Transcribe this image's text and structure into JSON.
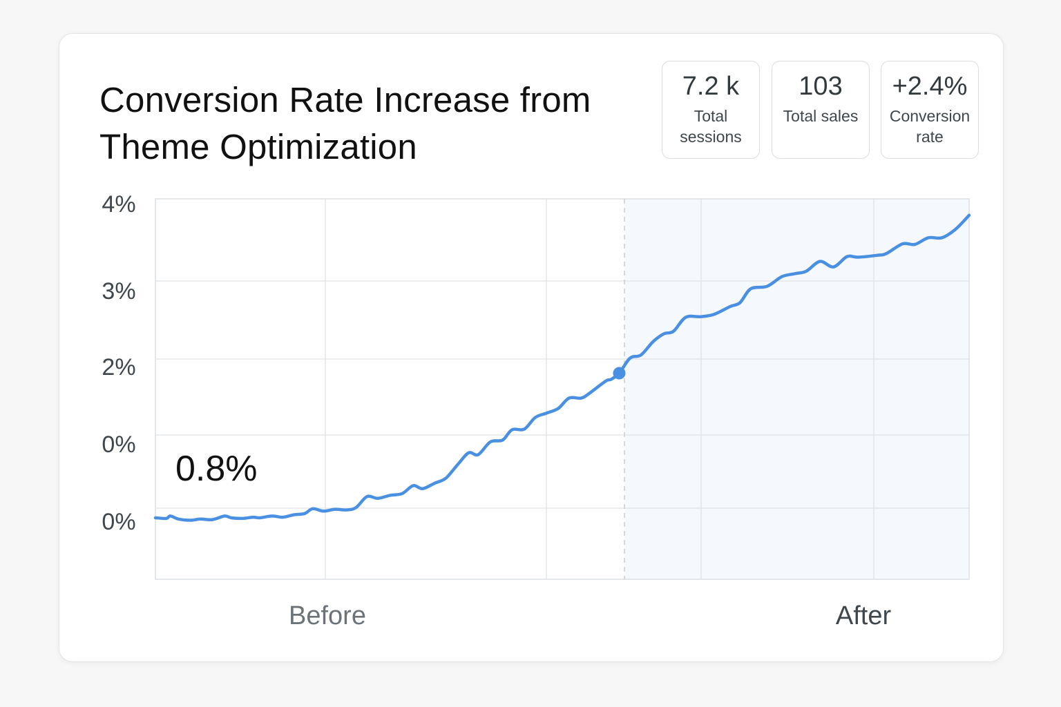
{
  "card": {
    "title": "Conversion Rate Increase from Theme Optimization",
    "stats": [
      {
        "value": "7.2 k",
        "label": "Total sessions"
      },
      {
        "value": "103",
        "label": "Total sales"
      },
      {
        "value": "+2.4%",
        "label": "Conversion rate"
      }
    ]
  },
  "chart_data": {
    "type": "line",
    "title": "Conversion Rate Increase from Theme Optimization",
    "y_tick_labels": [
      "4%",
      "3%",
      "2%",
      "0%",
      "0%"
    ],
    "x_labels": [
      "Before",
      "After"
    ],
    "annotation": "0.8%",
    "grid": true,
    "after_region_shaded": true,
    "line_color": "#4a90e2",
    "series": [
      {
        "x": [
          0.0,
          0.8,
          1.1,
          1.7,
          2.6,
          3.3,
          4.2,
          5.1,
          5.6,
          6.4,
          7.2,
          7.7,
          8.6,
          9.4,
          10.2,
          11.0,
          11.6,
          12.4,
          13.2,
          14.1,
          14.8,
          15.6,
          16.4,
          17.3,
          18.2,
          19.0,
          19.7,
          20.6,
          21.4,
          22.3,
          23.1,
          23.8,
          24.7,
          25.6,
          26.3,
          27.2,
          28.0,
          28.8,
          29.7,
          30.5,
          31.4,
          32.0,
          33.2,
          33.6,
          34.2,
          35.0,
          35.8,
          36.7,
          37.5,
          38.2,
          39.1,
          40.2,
          41.2,
          42.4,
          43.1,
          43.9,
          45.1,
          46.2,
          47.2,
          48.0,
          49.0,
          50.0,
          51.0,
          51.8,
          53.2,
          53.9,
          55.1,
          56.0,
          57.0,
          58.0,
          59.0,
          60.0
        ],
        "y": [
          0.0,
          -0.01,
          0.03,
          -0.02,
          -0.04,
          -0.02,
          -0.03,
          0.03,
          0.0,
          -0.01,
          0.01,
          0.0,
          0.03,
          0.01,
          0.05,
          0.07,
          0.15,
          0.11,
          0.14,
          0.13,
          0.17,
          0.35,
          0.32,
          0.37,
          0.4,
          0.53,
          0.48,
          0.57,
          0.65,
          0.88,
          1.07,
          1.04,
          1.25,
          1.28,
          1.45,
          1.46,
          1.65,
          1.72,
          1.8,
          1.97,
          1.97,
          2.05,
          2.25,
          2.28,
          2.38,
          2.63,
          2.68,
          2.9,
          3.03,
          3.07,
          3.3,
          3.31,
          3.35,
          3.48,
          3.54,
          3.77,
          3.81,
          3.97,
          4.02,
          4.06,
          4.22,
          4.13,
          4.3,
          4.29,
          4.32,
          4.35,
          4.51,
          4.5,
          4.61,
          4.61,
          4.75,
          4.98
        ]
      }
    ]
  }
}
